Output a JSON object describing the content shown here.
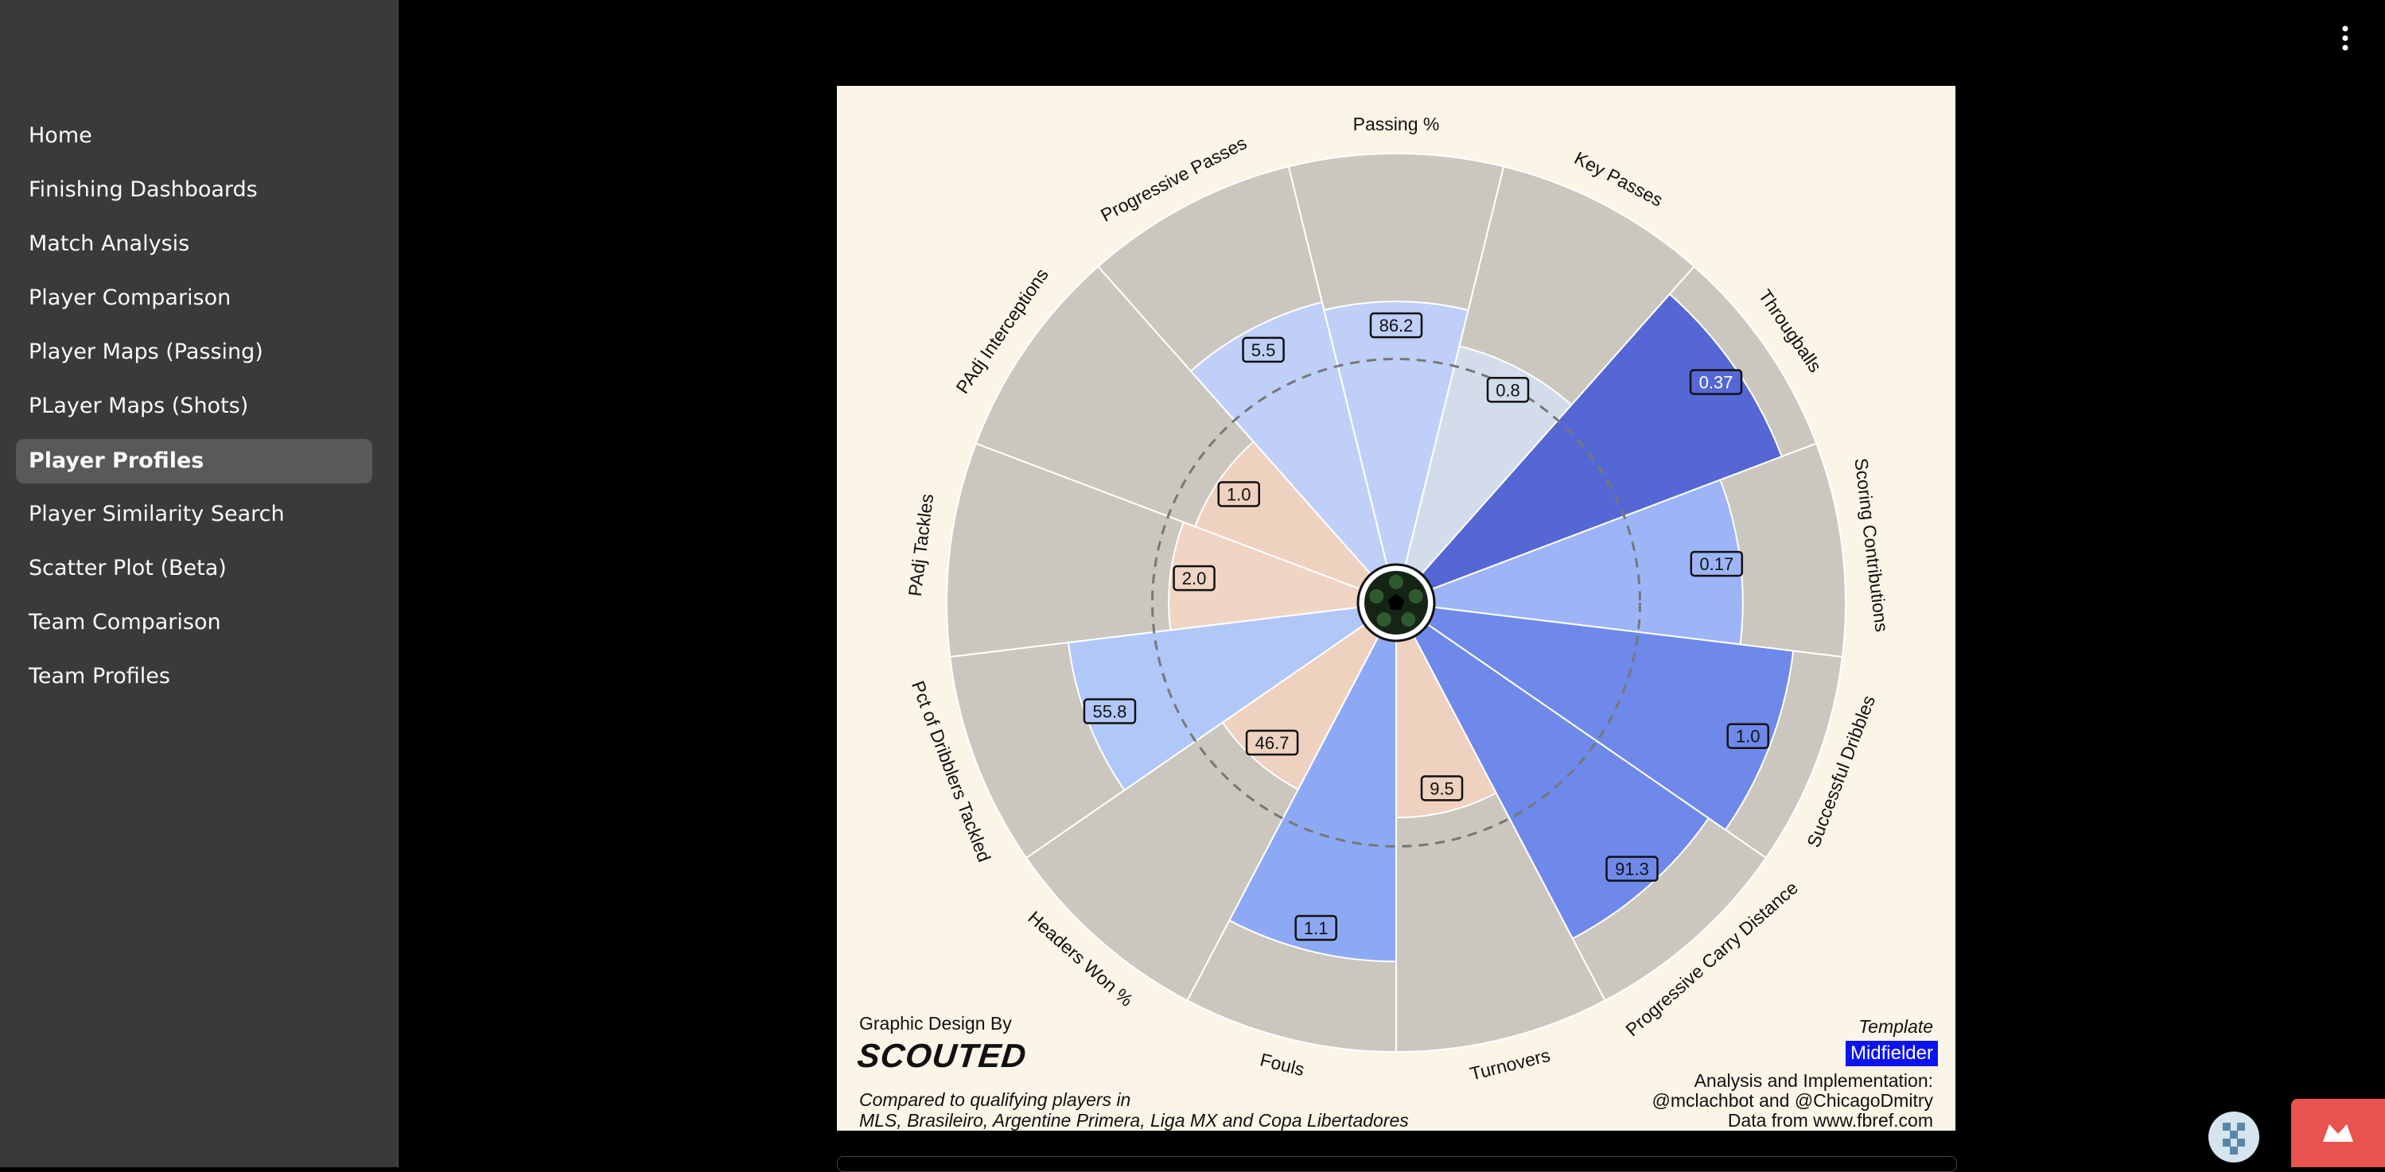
{
  "sidebar": {
    "items": [
      {
        "label": "Home",
        "active": false
      },
      {
        "label": "Finishing Dashboards",
        "active": false
      },
      {
        "label": "Match Analysis",
        "active": false
      },
      {
        "label": "Player Comparison",
        "active": false
      },
      {
        "label": "Player Maps (Passing)",
        "active": false
      },
      {
        "label": "PLayer Maps (Shots)",
        "active": false
      },
      {
        "label": "Player Profiles",
        "active": true
      },
      {
        "label": "Player Similarity Search",
        "active": false
      },
      {
        "label": "Scatter Plot (Beta)",
        "active": false
      },
      {
        "label": "Team Comparison",
        "active": false
      },
      {
        "label": "Team Profiles",
        "active": false
      }
    ]
  },
  "footer": {
    "credit_label": "Graphic Design By",
    "credit_logo": "SCOUTED",
    "compare_line1": "Compared to qualifying players in",
    "compare_line2": "MLS, Brasileiro, Argentine Primera, Liga MX and Copa Libertadores",
    "template_label": "Template",
    "position_badge": "Midfielder",
    "analysis_line1": "Analysis and Implementation:",
    "analysis_line2": "@mclachbot and @ChicagoDmitry",
    "data_source": "Data from www.fbref.com"
  },
  "colors": {
    "background": "#fbf5e8",
    "slice_background": "#cbc7bf",
    "reference_circle": "#777777"
  },
  "chart_data": {
    "type": "radar",
    "reference_percentile": 50,
    "metrics": [
      {
        "name": "Passing %",
        "value": "86.2",
        "percentile": 64,
        "color": "#bfcff7",
        "label_dark": false
      },
      {
        "name": "Key Passes",
        "value": "0.8",
        "percentile": 55,
        "color": "#d3dcea",
        "label_dark": false
      },
      {
        "name": "Througballs",
        "value": "0.37",
        "percentile": 91,
        "color": "#5467d4",
        "label_dark": true
      },
      {
        "name": "Scoring Contributions",
        "value": "0.17",
        "percentile": 75,
        "color": "#9db5f7",
        "label_dark": false
      },
      {
        "name": "Successful Dribbles",
        "value": "1.0",
        "percentile": 88,
        "color": "#6f89ea",
        "label_dark": false
      },
      {
        "name": "Progressive Carry Distance",
        "value": "91.3",
        "percentile": 83,
        "color": "#6f89ea",
        "label_dark": false
      },
      {
        "name": "Turnovers",
        "value": "9.5",
        "percentile": 43,
        "color": "#eed1bf",
        "label_dark": false
      },
      {
        "name": "Fouls",
        "value": "1.1",
        "percentile": 78,
        "color": "#8ea9f4",
        "label_dark": false
      },
      {
        "name": "Headers Won %",
        "value": "46.7",
        "percentile": 42,
        "color": "#eed1bf",
        "label_dark": false
      },
      {
        "name": "Pct of Dribblers Tackled",
        "value": "55.8",
        "percentile": 71,
        "color": "#b1c7f8",
        "label_dark": false
      },
      {
        "name": "PAdj Tackles",
        "value": "2.0",
        "percentile": 46,
        "color": "#f0d4c4",
        "label_dark": false
      },
      {
        "name": "PAdj Interceptions",
        "value": "1.0",
        "percentile": 43,
        "color": "#eed1bf",
        "label_dark": false
      },
      {
        "name": "Progressive Passes",
        "value": "5.5",
        "percentile": 66,
        "color": "#bfcff7",
        "label_dark": false
      }
    ]
  }
}
